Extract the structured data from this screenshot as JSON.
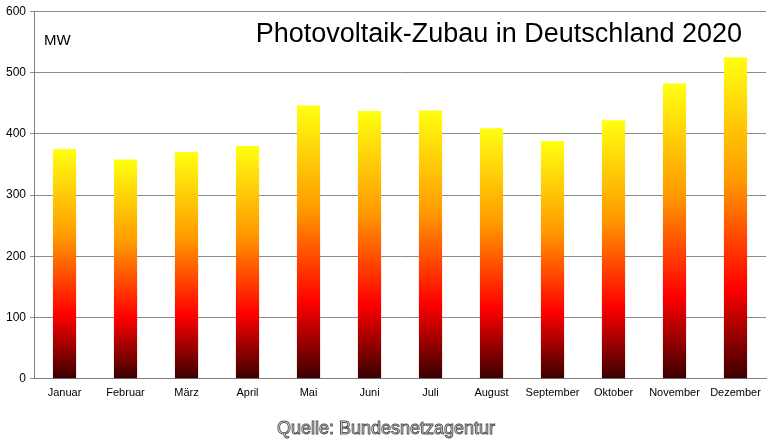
{
  "chart_data": {
    "type": "bar",
    "title": "Photovoltaik-Zubau in Deutschland 2020",
    "y_label": "MW",
    "source": "Quelle: Bundesnetzagentur",
    "categories": [
      "Januar",
      "Februar",
      "März",
      "April",
      "Mai",
      "Juni",
      "Juli",
      "August",
      "September",
      "Oktober",
      "November",
      "Dezember"
    ],
    "values": [
      375,
      358,
      370,
      380,
      446,
      437,
      438,
      409,
      388,
      422,
      482,
      525
    ],
    "ylim": [
      0,
      600
    ],
    "yticks": [
      0,
      100,
      200,
      300,
      400,
      500,
      600
    ],
    "grid": true
  }
}
